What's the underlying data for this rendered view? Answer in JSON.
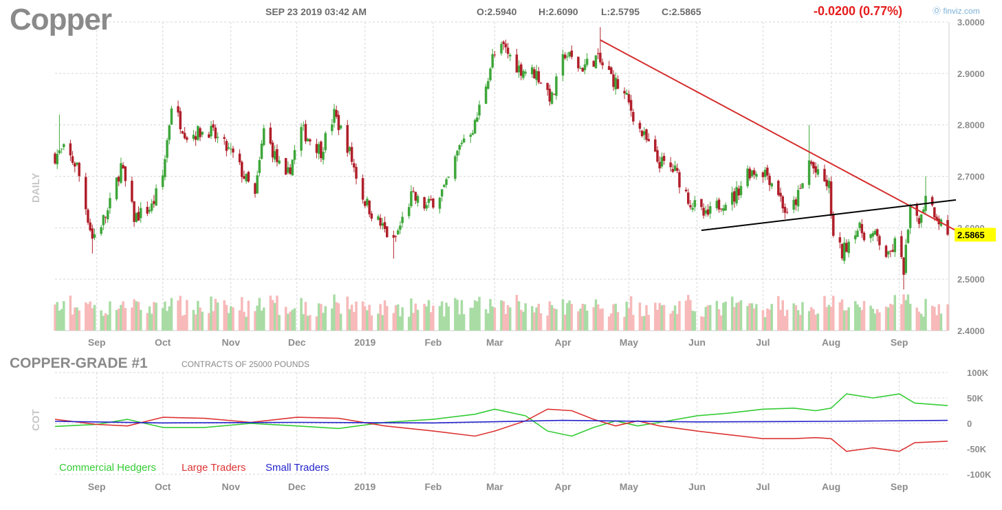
{
  "header": {
    "title": "Copper",
    "date": "SEP 23 2019 03:42 AM",
    "open": "O:2.5940",
    "high": "H:2.6090",
    "low": "L:2.5795",
    "close": "C:2.5865",
    "change": "-0.0200 (0.77%)",
    "source": "finviz.com"
  },
  "colors": {
    "up": "#3ea63a",
    "down": "#b01f2a",
    "vol_up": "#a8dca4",
    "vol_down": "#f7b9b9",
    "trendline_red": "#d42d2d",
    "trendline_black": "#000000",
    "last_price_bg": "#ffff00",
    "commercial": "#33cc33",
    "large": "#dd3333",
    "small": "#2222cc",
    "grid": "#d6d6d6"
  },
  "chart_data": [
    {
      "type": "candlestick",
      "side_label": "DAILY",
      "period": "daily",
      "ylim": [
        2.4,
        3.0
      ],
      "y_ticks": [
        "3.0000",
        "2.9000",
        "2.8000",
        "2.7000",
        "2.6000",
        "2.5000",
        "2.4000"
      ],
      "x_ticks": [
        "Sep",
        "Oct",
        "Nov",
        "Dec",
        "2019",
        "Feb",
        "Mar",
        "Apr",
        "May",
        "Jun",
        "Jul",
        "Aug",
        "Sep"
      ],
      "last_price": "2.5865",
      "ohlc_anchors": [
        {
          "date": "2018-08-13",
          "close": 2.74
        },
        {
          "date": "2018-08-17",
          "close": 2.75
        },
        {
          "date": "2018-08-23",
          "close": 2.72
        },
        {
          "date": "2018-08-30",
          "close": 2.58
        },
        {
          "date": "2018-09-06",
          "close": 2.63
        },
        {
          "date": "2018-09-12",
          "close": 2.72
        },
        {
          "date": "2018-09-18",
          "close": 2.62
        },
        {
          "date": "2018-09-26",
          "close": 2.64
        },
        {
          "date": "2018-10-01",
          "close": 2.7
        },
        {
          "date": "2018-10-05",
          "close": 2.84
        },
        {
          "date": "2018-10-12",
          "close": 2.78
        },
        {
          "date": "2018-10-22",
          "close": 2.79
        },
        {
          "date": "2018-11-02",
          "close": 2.74
        },
        {
          "date": "2018-11-12",
          "close": 2.66
        },
        {
          "date": "2018-11-16",
          "close": 2.79
        },
        {
          "date": "2018-11-26",
          "close": 2.69
        },
        {
          "date": "2018-12-03",
          "close": 2.79
        },
        {
          "date": "2018-12-12",
          "close": 2.75
        },
        {
          "date": "2018-12-18",
          "close": 2.82
        },
        {
          "date": "2018-12-24",
          "close": 2.76
        },
        {
          "date": "2018-12-31",
          "close": 2.66
        },
        {
          "date": "2019-01-04",
          "close": 2.63
        },
        {
          "date": "2019-01-14",
          "close": 2.57
        },
        {
          "date": "2019-01-22",
          "close": 2.66
        },
        {
          "date": "2019-01-29",
          "close": 2.64
        },
        {
          "date": "2019-02-07",
          "close": 2.68
        },
        {
          "date": "2019-02-14",
          "close": 2.77
        },
        {
          "date": "2019-02-20",
          "close": 2.8
        },
        {
          "date": "2019-02-28",
          "close": 2.93
        },
        {
          "date": "2019-03-05",
          "close": 2.95
        },
        {
          "date": "2019-03-12",
          "close": 2.91
        },
        {
          "date": "2019-03-20",
          "close": 2.9
        },
        {
          "date": "2019-03-27",
          "close": 2.85
        },
        {
          "date": "2019-04-02",
          "close": 2.94
        },
        {
          "date": "2019-04-09",
          "close": 2.91
        },
        {
          "date": "2019-04-16",
          "close": 2.93
        },
        {
          "date": "2019-04-22",
          "close": 2.9
        },
        {
          "date": "2019-04-30",
          "close": 2.85
        },
        {
          "date": "2019-05-06",
          "close": 2.79
        },
        {
          "date": "2019-05-14",
          "close": 2.73
        },
        {
          "date": "2019-05-22",
          "close": 2.71
        },
        {
          "date": "2019-05-29",
          "close": 2.65
        },
        {
          "date": "2019-06-05",
          "close": 2.62
        },
        {
          "date": "2019-06-12",
          "close": 2.65
        },
        {
          "date": "2019-06-18",
          "close": 2.66
        },
        {
          "date": "2019-06-24",
          "close": 2.71
        },
        {
          "date": "2019-07-02",
          "close": 2.71
        },
        {
          "date": "2019-07-08",
          "close": 2.67
        },
        {
          "date": "2019-07-12",
          "close": 2.62
        },
        {
          "date": "2019-07-18",
          "close": 2.67
        },
        {
          "date": "2019-07-22",
          "close": 2.73
        },
        {
          "date": "2019-07-26",
          "close": 2.7
        },
        {
          "date": "2019-07-31",
          "close": 2.68
        },
        {
          "date": "2019-08-02",
          "close": 2.58
        },
        {
          "date": "2019-08-06",
          "close": 2.55
        },
        {
          "date": "2019-08-12",
          "close": 2.6
        },
        {
          "date": "2019-08-16",
          "close": 2.59
        },
        {
          "date": "2019-08-22",
          "close": 2.58
        },
        {
          "date": "2019-08-27",
          "close": 2.54
        },
        {
          "date": "2019-08-30",
          "close": 2.57
        },
        {
          "date": "2019-09-03",
          "close": 2.52
        },
        {
          "date": "2019-09-06",
          "close": 2.63
        },
        {
          "date": "2019-09-11",
          "close": 2.62
        },
        {
          "date": "2019-09-13",
          "close": 2.67
        },
        {
          "date": "2019-09-16",
          "close": 2.64
        },
        {
          "date": "2019-09-23",
          "close": 2.5865
        }
      ],
      "spikes": [
        {
          "date": "2018-08-15",
          "high": 2.82
        },
        {
          "date": "2018-08-30",
          "low": 2.55
        },
        {
          "date": "2019-01-14",
          "low": 2.54
        },
        {
          "date": "2019-04-18",
          "high": 2.99
        },
        {
          "date": "2019-07-22",
          "high": 2.8
        },
        {
          "date": "2019-09-03",
          "low": 2.48
        },
        {
          "date": "2019-09-13",
          "high": 2.7
        }
      ],
      "trendlines": [
        {
          "name": "resistance",
          "color": "red",
          "from": {
            "date": "2019-04-18",
            "value": 2.965
          },
          "to": {
            "date": "2019-09-23",
            "value": 2.6
          }
        },
        {
          "name": "support",
          "color": "black",
          "from": {
            "date": "2019-06-03",
            "value": 2.595
          },
          "to": {
            "date": "2019-09-23",
            "value": 2.65
          }
        }
      ]
    },
    {
      "type": "line",
      "side_label": "COT",
      "title": "COPPER-GRADE #1",
      "subtitle": "CONTRACTS OF 25000 POUNDS",
      "ylim": [
        -100000,
        100000
      ],
      "y_ticks": [
        "100K",
        "50K",
        "0",
        "-50K",
        "-100K"
      ],
      "x_ticks": [
        "Sep",
        "Oct",
        "Nov",
        "Dec",
        "2019",
        "Feb",
        "Mar",
        "Apr",
        "May",
        "Jun",
        "Jul",
        "Aug",
        "Sep"
      ],
      "series": [
        {
          "name": "Commercial Hedgers",
          "points": [
            [
              "2018-08-13",
              -6000
            ],
            [
              "2018-09-01",
              -2000
            ],
            [
              "2018-09-15",
              8000
            ],
            [
              "2018-10-01",
              -8000
            ],
            [
              "2018-10-20",
              -8000
            ],
            [
              "2018-11-10",
              0
            ],
            [
              "2018-12-01",
              -5000
            ],
            [
              "2018-12-20",
              -10000
            ],
            [
              "2019-01-10",
              2000
            ],
            [
              "2019-02-01",
              8000
            ],
            [
              "2019-02-20",
              18000
            ],
            [
              "2019-03-01",
              28000
            ],
            [
              "2019-03-15",
              15000
            ],
            [
              "2019-03-25",
              -15000
            ],
            [
              "2019-04-05",
              -25000
            ],
            [
              "2019-04-15",
              -8000
            ],
            [
              "2019-04-25",
              5000
            ],
            [
              "2019-05-05",
              -5000
            ],
            [
              "2019-05-15",
              2000
            ],
            [
              "2019-06-01",
              15000
            ],
            [
              "2019-06-15",
              20000
            ],
            [
              "2019-07-01",
              28000
            ],
            [
              "2019-07-15",
              30000
            ],
            [
              "2019-07-25",
              25000
            ],
            [
              "2019-08-01",
              30000
            ],
            [
              "2019-08-08",
              58000
            ],
            [
              "2019-08-20",
              50000
            ],
            [
              "2019-09-01",
              58000
            ],
            [
              "2019-09-08",
              40000
            ],
            [
              "2019-09-23",
              35000
            ]
          ]
        },
        {
          "name": "Large Traders",
          "points": [
            [
              "2018-08-13",
              8000
            ],
            [
              "2018-09-01",
              -2000
            ],
            [
              "2018-09-15",
              -5000
            ],
            [
              "2018-10-01",
              12000
            ],
            [
              "2018-10-20",
              10000
            ],
            [
              "2018-11-10",
              2000
            ],
            [
              "2018-12-01",
              12000
            ],
            [
              "2018-12-20",
              10000
            ],
            [
              "2019-01-10",
              -5000
            ],
            [
              "2019-02-01",
              -15000
            ],
            [
              "2019-02-20",
              -25000
            ],
            [
              "2019-03-01",
              -15000
            ],
            [
              "2019-03-15",
              5000
            ],
            [
              "2019-03-25",
              28000
            ],
            [
              "2019-04-05",
              25000
            ],
            [
              "2019-04-15",
              8000
            ],
            [
              "2019-04-25",
              -5000
            ],
            [
              "2019-05-05",
              5000
            ],
            [
              "2019-05-15",
              -5000
            ],
            [
              "2019-06-01",
              -15000
            ],
            [
              "2019-06-15",
              -22000
            ],
            [
              "2019-07-01",
              -30000
            ],
            [
              "2019-07-15",
              -30000
            ],
            [
              "2019-07-25",
              -28000
            ],
            [
              "2019-08-01",
              -30000
            ],
            [
              "2019-08-08",
              -55000
            ],
            [
              "2019-08-20",
              -48000
            ],
            [
              "2019-09-01",
              -55000
            ],
            [
              "2019-09-08",
              -38000
            ],
            [
              "2019-09-23",
              -35000
            ]
          ]
        },
        {
          "name": "Small Traders",
          "points": [
            [
              "2018-08-13",
              4000
            ],
            [
              "2018-10-01",
              1000
            ],
            [
              "2018-12-01",
              2000
            ],
            [
              "2019-02-01",
              1000
            ],
            [
              "2019-04-01",
              6000
            ],
            [
              "2019-06-01",
              3000
            ],
            [
              "2019-08-01",
              4000
            ],
            [
              "2019-09-23",
              6000
            ]
          ]
        }
      ]
    }
  ]
}
